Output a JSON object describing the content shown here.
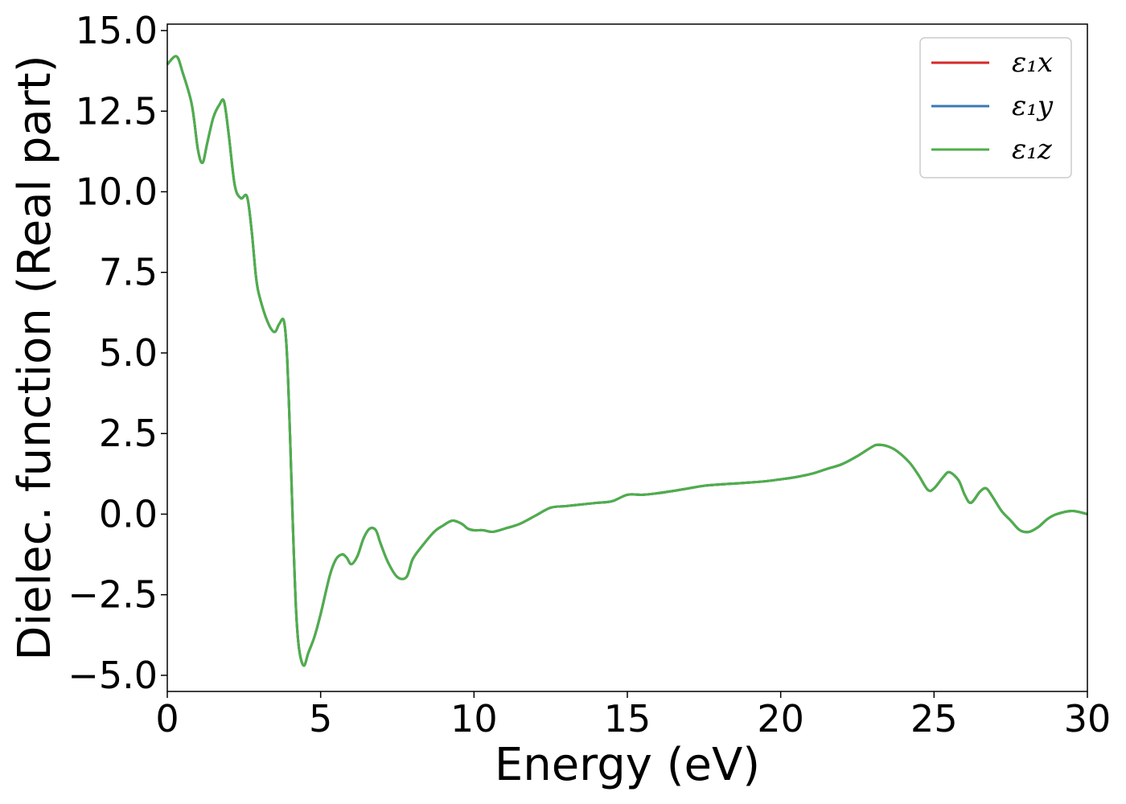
{
  "chart_data": {
    "type": "line",
    "xlabel": "Energy (eV)",
    "ylabel": "Dielec. function (Real part)",
    "xlim": [
      0,
      30
    ],
    "ylim": [
      -5.5,
      15.2
    ],
    "xticks": [
      0,
      5,
      10,
      15,
      20,
      25,
      30
    ],
    "xtick_labels": [
      "0",
      "5",
      "10",
      "15",
      "20",
      "25",
      "30"
    ],
    "yticks": [
      -5.0,
      -2.5,
      0.0,
      2.5,
      5.0,
      7.5,
      10.0,
      12.5,
      15.0
    ],
    "ytick_labels": [
      "−5.0",
      "−2.5",
      "0.0",
      "2.5",
      "5.0",
      "7.5",
      "10.0",
      "12.5",
      "15.0"
    ],
    "grid": false,
    "legend_position": "top-right",
    "x": [
      0.0,
      0.3,
      0.5,
      0.8,
      1.0,
      1.15,
      1.3,
      1.5,
      1.7,
      1.85,
      2.0,
      2.2,
      2.4,
      2.6,
      2.75,
      2.9,
      3.05,
      3.3,
      3.5,
      3.65,
      3.8,
      3.9,
      4.0,
      4.1,
      4.2,
      4.3,
      4.45,
      4.6,
      4.8,
      5.0,
      5.3,
      5.5,
      5.7,
      5.85,
      6.0,
      6.2,
      6.4,
      6.6,
      6.8,
      6.95,
      7.2,
      7.5,
      7.8,
      8.0,
      8.3,
      8.7,
      9.0,
      9.3,
      9.6,
      9.8,
      10.0,
      10.3,
      10.6,
      11.0,
      11.5,
      12.0,
      12.5,
      13.0,
      13.5,
      14.0,
      14.5,
      15.0,
      15.5,
      16.0,
      16.5,
      17.0,
      17.5,
      18.0,
      18.5,
      19.0,
      19.5,
      20.0,
      20.5,
      21.0,
      21.5,
      22.0,
      22.5,
      23.0,
      23.2,
      23.5,
      23.8,
      24.2,
      24.5,
      24.8,
      25.0,
      25.3,
      25.5,
      25.8,
      26.0,
      26.2,
      26.5,
      26.7,
      26.9,
      27.2,
      27.5,
      27.8,
      28.1,
      28.4,
      28.7,
      29.0,
      29.5,
      30.0
    ],
    "series": [
      {
        "name": "ε₁x",
        "color": "#d62728",
        "values": [
          13.95,
          14.2,
          13.7,
          12.7,
          11.3,
          10.9,
          11.5,
          12.3,
          12.7,
          12.8,
          11.8,
          10.2,
          9.8,
          9.85,
          8.8,
          7.3,
          6.6,
          5.9,
          5.65,
          5.9,
          6.0,
          5.0,
          2.5,
          -0.5,
          -3.0,
          -4.2,
          -4.7,
          -4.3,
          -3.8,
          -3.1,
          -1.9,
          -1.4,
          -1.25,
          -1.35,
          -1.55,
          -1.3,
          -0.75,
          -0.45,
          -0.5,
          -0.9,
          -1.5,
          -1.95,
          -1.95,
          -1.4,
          -1.0,
          -0.55,
          -0.35,
          -0.2,
          -0.3,
          -0.45,
          -0.5,
          -0.5,
          -0.55,
          -0.45,
          -0.3,
          -0.05,
          0.2,
          0.25,
          0.3,
          0.35,
          0.4,
          0.6,
          0.6,
          0.65,
          0.72,
          0.8,
          0.88,
          0.92,
          0.95,
          0.98,
          1.02,
          1.08,
          1.15,
          1.25,
          1.4,
          1.55,
          1.8,
          2.1,
          2.15,
          2.1,
          1.95,
          1.6,
          1.2,
          0.75,
          0.8,
          1.15,
          1.3,
          1.05,
          0.6,
          0.35,
          0.7,
          0.8,
          0.55,
          0.1,
          -0.2,
          -0.5,
          -0.55,
          -0.4,
          -0.15,
          0.0,
          0.1,
          0.0
        ]
      },
      {
        "name": "ε₁y",
        "color": "#3a78b5",
        "values": [
          13.95,
          14.2,
          13.7,
          12.7,
          11.3,
          10.9,
          11.5,
          12.3,
          12.7,
          12.8,
          11.8,
          10.2,
          9.8,
          9.85,
          8.8,
          7.3,
          6.6,
          5.9,
          5.65,
          5.9,
          6.0,
          5.0,
          2.5,
          -0.5,
          -3.0,
          -4.2,
          -4.7,
          -4.3,
          -3.8,
          -3.1,
          -1.9,
          -1.4,
          -1.25,
          -1.35,
          -1.55,
          -1.3,
          -0.75,
          -0.45,
          -0.5,
          -0.9,
          -1.5,
          -1.95,
          -1.95,
          -1.4,
          -1.0,
          -0.55,
          -0.35,
          -0.2,
          -0.3,
          -0.45,
          -0.5,
          -0.5,
          -0.55,
          -0.45,
          -0.3,
          -0.05,
          0.2,
          0.25,
          0.3,
          0.35,
          0.4,
          0.6,
          0.6,
          0.65,
          0.72,
          0.8,
          0.88,
          0.92,
          0.95,
          0.98,
          1.02,
          1.08,
          1.15,
          1.25,
          1.4,
          1.55,
          1.8,
          2.1,
          2.15,
          2.1,
          1.95,
          1.6,
          1.2,
          0.75,
          0.8,
          1.15,
          1.3,
          1.05,
          0.6,
          0.35,
          0.7,
          0.8,
          0.55,
          0.1,
          -0.2,
          -0.5,
          -0.55,
          -0.4,
          -0.15,
          0.0,
          0.1,
          0.0
        ]
      },
      {
        "name": "ε₁z",
        "color": "#4daf4a",
        "values": [
          13.95,
          14.2,
          13.7,
          12.7,
          11.3,
          10.9,
          11.5,
          12.3,
          12.7,
          12.8,
          11.8,
          10.2,
          9.8,
          9.85,
          8.8,
          7.3,
          6.6,
          5.9,
          5.65,
          5.9,
          6.0,
          5.0,
          2.5,
          -0.5,
          -3.0,
          -4.2,
          -4.7,
          -4.3,
          -3.8,
          -3.1,
          -1.9,
          -1.4,
          -1.25,
          -1.35,
          -1.55,
          -1.3,
          -0.75,
          -0.45,
          -0.5,
          -0.9,
          -1.5,
          -1.95,
          -1.95,
          -1.4,
          -1.0,
          -0.55,
          -0.35,
          -0.2,
          -0.3,
          -0.45,
          -0.5,
          -0.5,
          -0.55,
          -0.45,
          -0.3,
          -0.05,
          0.2,
          0.25,
          0.3,
          0.35,
          0.4,
          0.6,
          0.6,
          0.65,
          0.72,
          0.8,
          0.88,
          0.92,
          0.95,
          0.98,
          1.02,
          1.08,
          1.15,
          1.25,
          1.4,
          1.55,
          1.8,
          2.1,
          2.15,
          2.1,
          1.95,
          1.6,
          1.2,
          0.75,
          0.8,
          1.15,
          1.3,
          1.05,
          0.6,
          0.35,
          0.7,
          0.8,
          0.55,
          0.1,
          -0.2,
          -0.5,
          -0.55,
          -0.4,
          -0.15,
          0.0,
          0.1,
          0.0
        ]
      }
    ]
  }
}
